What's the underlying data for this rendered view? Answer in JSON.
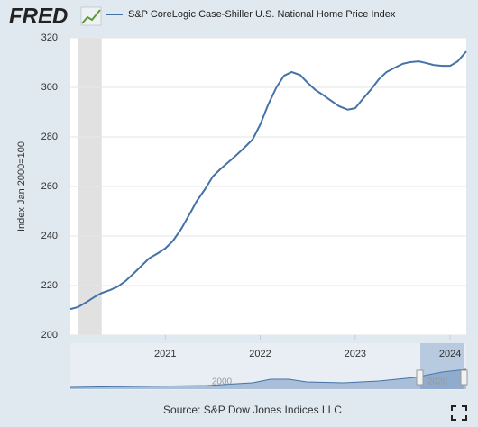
{
  "brand": "FRED",
  "chart_data": {
    "type": "line",
    "y_label": "Index Jan 2000=100",
    "source": "Source: S&P Dow Jones Indices LLC",
    "x": [
      2020.0,
      2020.08,
      2020.17,
      2020.25,
      2020.33,
      2020.42,
      2020.5,
      2020.58,
      2020.67,
      2020.75,
      2020.83,
      2020.92,
      2021.0,
      2021.08,
      2021.17,
      2021.25,
      2021.33,
      2021.42,
      2021.5,
      2021.58,
      2021.67,
      2021.75,
      2021.83,
      2021.92,
      2022.0,
      2022.08,
      2022.17,
      2022.25,
      2022.33,
      2022.42,
      2022.5,
      2022.58,
      2022.67,
      2022.75,
      2022.83,
      2022.92,
      2023.0,
      2023.08,
      2023.17,
      2023.25,
      2023.33,
      2023.42,
      2023.5,
      2023.58,
      2023.67,
      2023.75,
      2023.83,
      2023.92,
      2024.0,
      2024.08,
      2024.17
    ],
    "series": [
      {
        "name": "S&P CoreLogic Case-Shiller U.S. National Home Price Index",
        "color": "#4572a7",
        "values": [
          210.5,
          211.3,
          213.3,
          215.3,
          217.0,
          218.2,
          219.6,
          221.8,
          225.0,
          228.0,
          231.0,
          233.0,
          235.0,
          238.0,
          243.0,
          248.4,
          254.0,
          259.0,
          264.0,
          267.0,
          270.0,
          272.7,
          275.6,
          279.0,
          285.0,
          292.7,
          300.0,
          304.7,
          306.2,
          305.0,
          301.8,
          299.0,
          296.7,
          294.5,
          292.4,
          291.0,
          291.6,
          295.3,
          299.3,
          303.3,
          306.2,
          308.0,
          309.5,
          310.2,
          310.5,
          309.8,
          309.0,
          308.7,
          308.7,
          310.5,
          314.5
        ]
      }
    ],
    "recessions": [
      {
        "start": 2020.08,
        "end": 2020.33
      }
    ],
    "xlim": [
      2020.0,
      2024.17
    ],
    "xticks": [
      2021,
      2022,
      2023,
      2024
    ],
    "ylim": [
      200,
      320
    ],
    "yticks": [
      200,
      220,
      240,
      260,
      280,
      300,
      320
    ],
    "grid": true,
    "navigator_labels": [
      "2000",
      "2020"
    ]
  }
}
